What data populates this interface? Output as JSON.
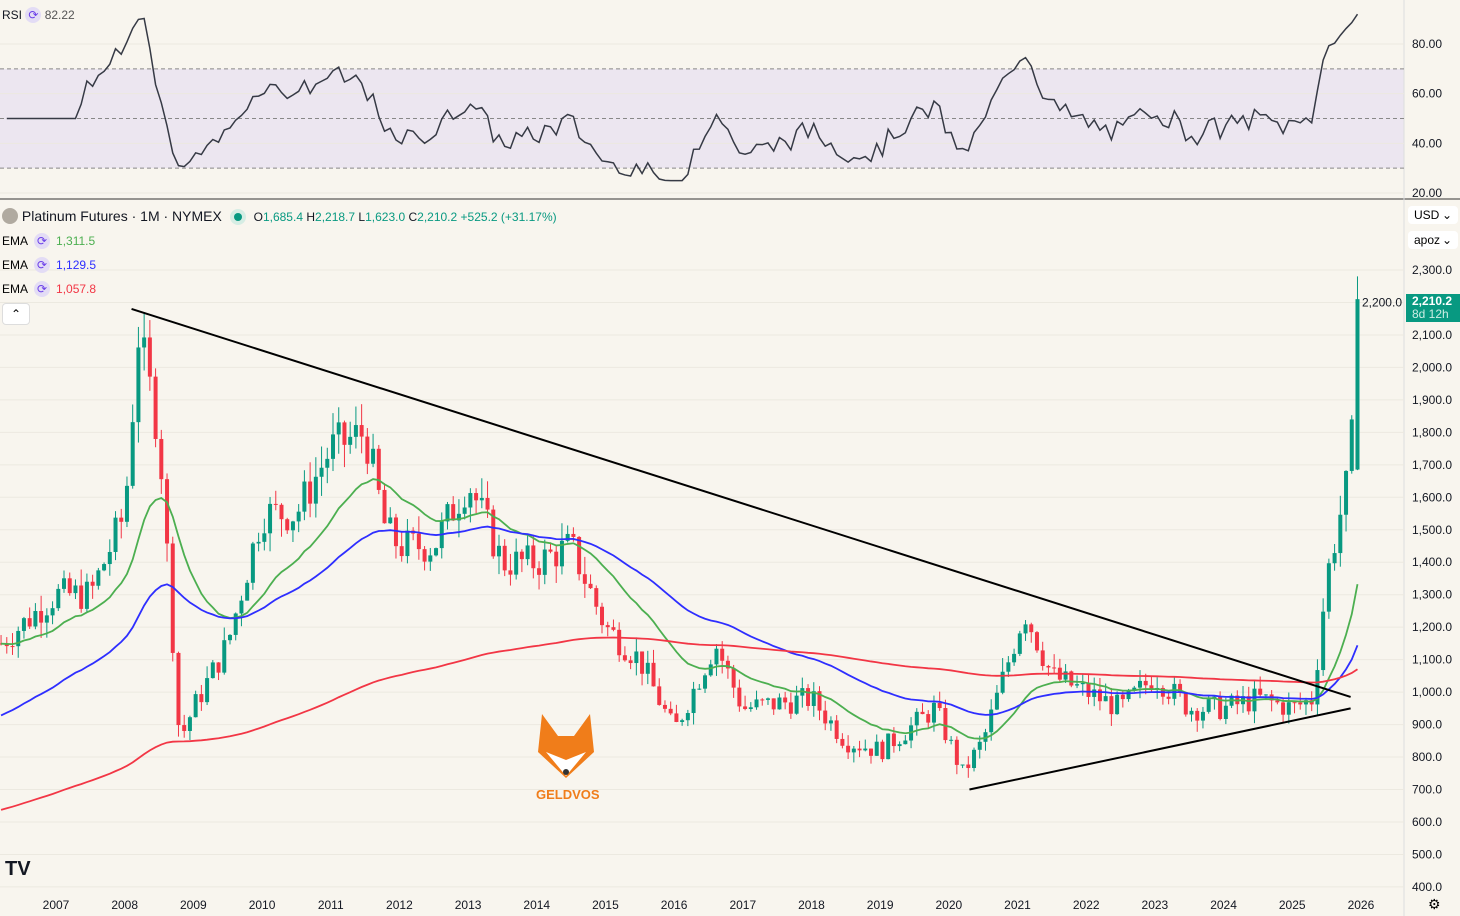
{
  "rsi": {
    "label": "RSI",
    "value": "82.22",
    "ticks": [
      "80.00",
      "60.00",
      "40.00",
      "20.00"
    ],
    "color": "#363a45",
    "band_color": "#ece6f0"
  },
  "header": {
    "title": "Platinum Futures · 1M · NYMEX",
    "open_label": "O",
    "open": "1,685.4",
    "high_label": "H",
    "high": "2,218.7",
    "low_label": "L",
    "low": "1,623.0",
    "close_label": "C",
    "close": "2,210.2",
    "change": "+525.2 (+31.17%)"
  },
  "ema": [
    {
      "label": "EMA",
      "value": "1,311.5",
      "color": "#4caf50",
      "period": 20
    },
    {
      "label": "EMA",
      "value": "1,129.5",
      "color": "#2e2eff",
      "period": 50
    },
    {
      "label": "EMA",
      "value": "1,057.8",
      "color": "#f23645",
      "period": 200
    }
  ],
  "currency": "USD",
  "unit": "apoz",
  "last_price": {
    "value": "2,210.2",
    "countdown": "8d 12h",
    "color": "#089981"
  },
  "watermark": "GELDVOS",
  "chart_data": {
    "type": "candlestick",
    "symbol": "Platinum Futures",
    "interval": "1M",
    "exchange": "NYMEX",
    "ylim": [
      400,
      2300
    ],
    "y_ticks": [
      "2,300.0",
      "2,200.0",
      "2,100.0",
      "2,000.0",
      "1,900.0",
      "1,800.0",
      "1,700.0",
      "1,600.0",
      "1,500.0",
      "1,400.0",
      "1,300.0",
      "1,200.0",
      "1,100.0",
      "1,000.0",
      "900.0",
      "800.0",
      "700.0",
      "600.0",
      "500.0",
      "400.0"
    ],
    "x_ticks": [
      "2007",
      "2008",
      "2009",
      "2010",
      "2011",
      "2012",
      "2013",
      "2014",
      "2015",
      "2016",
      "2017",
      "2018",
      "2019",
      "2020",
      "2021",
      "2022",
      "2023",
      "2024",
      "2025",
      "2026"
    ],
    "approx_close_path": [
      [
        2006.2,
        1150
      ],
      [
        2007.0,
        1300
      ],
      [
        2007.5,
        1300
      ],
      [
        2008.0,
        1550
      ],
      [
        2008.2,
        2100
      ],
      [
        2008.5,
        1800
      ],
      [
        2008.8,
        850
      ],
      [
        2009.0,
        950
      ],
      [
        2009.5,
        1150
      ],
      [
        2010.0,
        1550
      ],
      [
        2010.5,
        1550
      ],
      [
        2011.0,
        1750
      ],
      [
        2011.5,
        1800
      ],
      [
        2011.8,
        1500
      ],
      [
        2012.0,
        1450
      ],
      [
        2012.5,
        1450
      ],
      [
        2013.0,
        1650
      ],
      [
        2013.5,
        1400
      ],
      [
        2014.0,
        1400
      ],
      [
        2014.5,
        1450
      ],
      [
        2015.0,
        1200
      ],
      [
        2015.5,
        1100
      ],
      [
        2016.0,
        880
      ],
      [
        2016.6,
        1150
      ],
      [
        2017.0,
        950
      ],
      [
        2018.0,
        980
      ],
      [
        2018.5,
        850
      ],
      [
        2019.0,
        820
      ],
      [
        2019.8,
        950
      ],
      [
        2020.2,
        750
      ],
      [
        2020.5,
        850
      ],
      [
        2021.1,
        1250
      ],
      [
        2021.5,
        1050
      ],
      [
        2022.0,
        1000
      ],
      [
        2022.5,
        950
      ],
      [
        2023.0,
        1050
      ],
      [
        2023.5,
        950
      ],
      [
        2024.0,
        950
      ],
      [
        2024.5,
        980
      ],
      [
        2025.0,
        950
      ],
      [
        2025.3,
        980
      ],
      [
        2025.5,
        1350
      ],
      [
        2025.7,
        1550
      ],
      [
        2025.85,
        1685
      ],
      [
        2025.95,
        2210
      ]
    ],
    "trendlines": [
      [
        [
          2008.1,
          2180
        ],
        [
          2025.85,
          985
        ]
      ],
      [
        [
          2020.3,
          700
        ],
        [
          2025.85,
          950
        ]
      ]
    ],
    "up_color": "#089981",
    "down_color": "#f23645"
  }
}
